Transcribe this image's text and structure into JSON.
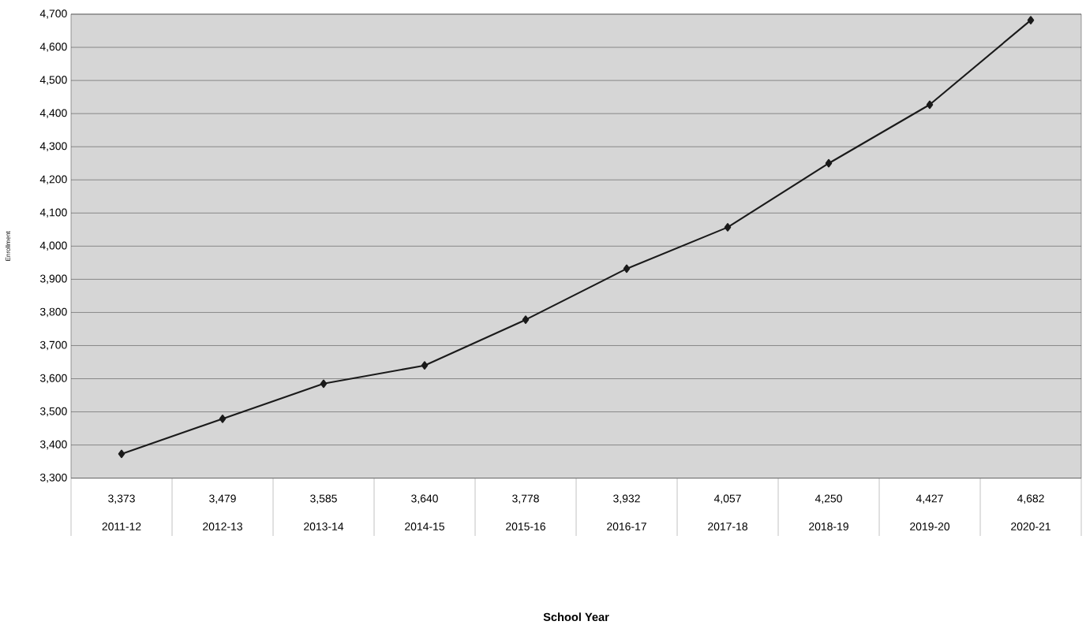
{
  "chart_data": {
    "type": "line",
    "annotations": [
      "School Year"
    ],
    "ylabel": "Enrollment",
    "categories": [
      "2011-12",
      "2012-13",
      "2013-14",
      "2014-15",
      "2015-16",
      "2016-17",
      "2017-18",
      "2018-19",
      "2019-20",
      "2020-21"
    ],
    "series": [
      {
        "color": "#1a1a1a",
        "values": [
          3373,
          3479,
          3585,
          3640,
          3778,
          3932,
          4057,
          4250,
          4427,
          4682
        ],
        "value_labels": [
          "3,373",
          "3,479",
          "3,585",
          "3,640",
          "3,778",
          "3,932",
          "4,057",
          "4,250",
          "4,427",
          "4,682"
        ]
      }
    ],
    "ylim": [
      3300,
      4700
    ],
    "yticks": [
      {
        "value": 3300,
        "label": "3,300"
      },
      {
        "value": 3400,
        "label": "3,400"
      },
      {
        "value": 3500,
        "label": "3,500"
      },
      {
        "value": 3600,
        "label": "3,600"
      },
      {
        "value": 3700,
        "label": "3,700"
      },
      {
        "value": 3800,
        "label": "3,800"
      },
      {
        "value": 3900,
        "label": "3,900"
      },
      {
        "value": 4000,
        "label": "4,000"
      },
      {
        "value": 4100,
        "label": "4,100"
      },
      {
        "value": 4200,
        "label": "4,200"
      },
      {
        "value": 4300,
        "label": "4,300"
      },
      {
        "value": 4400,
        "label": "4,400"
      },
      {
        "value": 4500,
        "label": "4,500"
      },
      {
        "value": 4600,
        "label": "4,600"
      },
      {
        "value": 4700,
        "label": "4,700"
      }
    ],
    "grid": "y",
    "marker": "diamond",
    "line_style": "solid"
  }
}
